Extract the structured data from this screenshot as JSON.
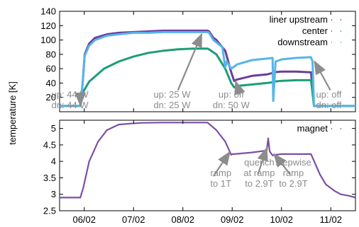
{
  "chart_data": [
    {
      "type": "line",
      "ylabel": "temperature [K]",
      "xlim": [
        0,
        1
      ],
      "ylim": [
        0,
        140
      ],
      "yticks": [
        20,
        40,
        60,
        80,
        100,
        120,
        140
      ],
      "grid": false,
      "legend_position": "top-right",
      "series": [
        {
          "name": "liner upstream",
          "color": "#6a3d9a",
          "x": [
            0.0,
            0.07,
            0.078,
            0.085,
            0.1,
            0.12,
            0.16,
            0.2,
            0.25,
            0.3,
            0.35,
            0.4,
            0.45,
            0.5,
            0.505,
            0.52,
            0.53,
            0.56,
            0.58,
            0.59,
            0.6,
            0.65,
            0.7,
            0.72,
            0.722,
            0.75,
            0.8,
            0.85,
            0.86,
            0.862,
            0.9,
            1.0
          ],
          "y": [
            8,
            8,
            40,
            80,
            95,
            103,
            108,
            110,
            111,
            112,
            113,
            113,
            113,
            113,
            112,
            103,
            100,
            85,
            55,
            43,
            45,
            50,
            52,
            54,
            55,
            56,
            56,
            55,
            8,
            8,
            8,
            8
          ]
        },
        {
          "name": "center",
          "color": "#1b9e77",
          "x": [
            0.0,
            0.07,
            0.08,
            0.1,
            0.15,
            0.2,
            0.25,
            0.3,
            0.35,
            0.4,
            0.45,
            0.5,
            0.505,
            0.53,
            0.56,
            0.58,
            0.59,
            0.6,
            0.65,
            0.7,
            0.72,
            0.722,
            0.75,
            0.8,
            0.85,
            0.86,
            0.862,
            0.9,
            1.0
          ],
          "y": [
            8,
            8,
            28,
            42,
            60,
            70,
            77,
            82,
            85,
            87,
            88,
            88,
            87,
            80,
            60,
            40,
            34,
            36,
            38,
            40,
            41,
            42,
            43,
            44,
            44,
            8,
            8,
            8,
            8
          ]
        },
        {
          "name": "downstream",
          "color": "#56b4e9",
          "x": [
            0.0,
            0.07,
            0.078,
            0.085,
            0.1,
            0.12,
            0.16,
            0.2,
            0.25,
            0.3,
            0.35,
            0.4,
            0.45,
            0.5,
            0.505,
            0.52,
            0.55,
            0.56,
            0.565,
            0.58,
            0.6,
            0.65,
            0.7,
            0.72,
            0.722,
            0.73,
            0.75,
            0.8,
            0.85,
            0.855,
            0.86,
            0.862,
            0.9,
            1.0
          ],
          "y": [
            8,
            8,
            40,
            78,
            92,
            100,
            106,
            108,
            110,
            110,
            111,
            111,
            111,
            111,
            110,
            100,
            90,
            62,
            70,
            60,
            66,
            72,
            74,
            75,
            15,
            70,
            73,
            75,
            76,
            70,
            8,
            8,
            8,
            8
          ]
        }
      ],
      "annotations": [
        {
          "lines": [
            "up: 44 W",
            "dn: 44 W"
          ],
          "x": 0.035,
          "y": 15
        },
        {
          "lines": [
            "up: 25 W",
            "dn: 25 W"
          ],
          "x": 0.38,
          "y": 15
        },
        {
          "lines": [
            "up: off",
            "dn: 50 W"
          ],
          "x": 0.58,
          "y": 15
        },
        {
          "lines": [
            "up: off",
            "dn: off"
          ],
          "x": 0.91,
          "y": 15
        }
      ]
    },
    {
      "type": "line",
      "xlim": [
        0,
        1
      ],
      "ylim": [
        2.5,
        5.25
      ],
      "yticks": [
        2.5,
        3,
        3.5,
        4,
        4.5,
        5
      ],
      "xticks": [
        "06/02",
        "07/02",
        "08/02",
        "09/02",
        "10/02",
        "11/02"
      ],
      "grid": false,
      "legend_position": "top-right",
      "series": [
        {
          "name": "magnet",
          "color": "#7b4fa6",
          "x": [
            0.0,
            0.07,
            0.08,
            0.1,
            0.13,
            0.16,
            0.2,
            0.24,
            0.28,
            0.35,
            0.4,
            0.45,
            0.5,
            0.53,
            0.56,
            0.57,
            0.58,
            0.585,
            0.59,
            0.6,
            0.65,
            0.7,
            0.705,
            0.71,
            0.72,
            0.73,
            0.75,
            0.8,
            0.85,
            0.88,
            0.9,
            0.93,
            0.95,
            0.98,
            1.0
          ],
          "y": [
            2.9,
            2.9,
            3.2,
            4.0,
            4.6,
            4.95,
            5.12,
            5.15,
            5.17,
            5.18,
            5.18,
            5.18,
            5.18,
            4.95,
            4.6,
            4.4,
            4.2,
            4.22,
            4.22,
            4.23,
            4.27,
            4.33,
            4.7,
            4.3,
            4.18,
            4.2,
            4.22,
            4.22,
            4.22,
            3.6,
            3.3,
            3.1,
            3.0,
            2.95,
            2.9
          ]
        }
      ],
      "annotations": [
        {
          "lines": [
            "ramp",
            "to 1T"
          ],
          "x": 0.545,
          "y": 3.45
        },
        {
          "lines": [
            "quench",
            "at ramp",
            "to 2.9T"
          ],
          "x": 0.675,
          "y": 3.45
        },
        {
          "lines": [
            "stepwise",
            "ramp",
            "to 2.9T"
          ],
          "x": 0.79,
          "y": 3.45
        }
      ]
    }
  ]
}
